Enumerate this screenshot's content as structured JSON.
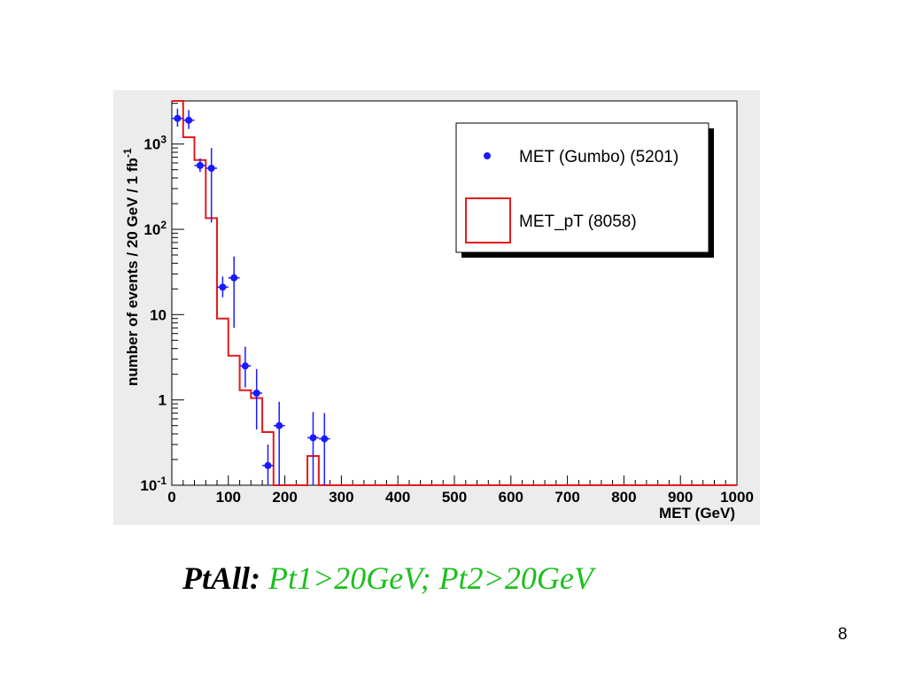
{
  "slide": {
    "caption_label": "PtAll:",
    "caption_cuts": "Pt1>20GeV; Pt2>20GeV",
    "page_number": "8"
  },
  "chart_data": {
    "type": "histogram",
    "title": "",
    "xlabel": "MET (GeV)",
    "ylabel": "number of events / 20 GeV / 1 fb",
    "ylabel_superscript": "-1",
    "xlim": [
      0,
      1000
    ],
    "ylim": [
      0.1,
      3200
    ],
    "yscale": "log",
    "grid": false,
    "legend_position": "top-right",
    "x_ticks": [
      "0",
      "100",
      "200",
      "300",
      "400",
      "500",
      "600",
      "700",
      "800",
      "900",
      "1000"
    ],
    "y_ticks": [
      {
        "value": 0.1,
        "base": "10",
        "exp": "-1"
      },
      {
        "value": 1,
        "base": "1",
        "exp": ""
      },
      {
        "value": 10,
        "base": "10",
        "exp": ""
      },
      {
        "value": 100,
        "base": "10",
        "exp": "2"
      },
      {
        "value": 1000,
        "base": "10",
        "exp": "3"
      }
    ],
    "series": [
      {
        "name": "MET (Gumbo) (5201)",
        "style": "points-with-errors",
        "color": "#1a1aff",
        "bin_width": 20,
        "points": [
          {
            "x": 10,
            "y": 2000,
            "lo": 1600,
            "hi": 2600
          },
          {
            "x": 30,
            "y": 1900,
            "lo": 1500,
            "hi": 2500
          },
          {
            "x": 50,
            "y": 560,
            "lo": 470,
            "hi": 680
          },
          {
            "x": 70,
            "y": 520,
            "lo": 120,
            "hi": 900
          },
          {
            "x": 90,
            "y": 21,
            "lo": 16,
            "hi": 28
          },
          {
            "x": 110,
            "y": 27,
            "lo": 7,
            "hi": 48
          },
          {
            "x": 130,
            "y": 2.5,
            "lo": 1.4,
            "hi": 4.2
          },
          {
            "x": 150,
            "y": 1.2,
            "lo": 0.45,
            "hi": 2.3
          },
          {
            "x": 170,
            "y": 0.17,
            "lo": 0.1,
            "hi": 0.3
          },
          {
            "x": 190,
            "y": 0.5,
            "lo": 0.1,
            "hi": 0.95
          },
          {
            "x": 250,
            "y": 0.36,
            "lo": 0.1,
            "hi": 0.72
          },
          {
            "x": 270,
            "y": 0.35,
            "lo": 0.1,
            "hi": 0.7
          }
        ]
      },
      {
        "name": "MET_pT (8058)",
        "style": "step",
        "color": "#e41a1c",
        "bin_width": 20,
        "bins": [
          {
            "x0": 0,
            "x1": 20,
            "y": 3200
          },
          {
            "x0": 20,
            "x1": 40,
            "y": 1200
          },
          {
            "x0": 40,
            "x1": 60,
            "y": 650
          },
          {
            "x0": 60,
            "x1": 80,
            "y": 135
          },
          {
            "x0": 80,
            "x1": 100,
            "y": 9
          },
          {
            "x0": 100,
            "x1": 120,
            "y": 3.3
          },
          {
            "x0": 120,
            "x1": 140,
            "y": 1.3
          },
          {
            "x0": 140,
            "x1": 160,
            "y": 1.05
          },
          {
            "x0": 160,
            "x1": 180,
            "y": 0.42
          },
          {
            "x0": 180,
            "x1": 240,
            "y": 0.1
          },
          {
            "x0": 240,
            "x1": 260,
            "y": 0.22
          },
          {
            "x0": 260,
            "x1": 1000,
            "y": 0.1
          }
        ]
      }
    ]
  },
  "colors": {
    "plot_background": "#ececec",
    "frame_background": "#ffffff",
    "caption_cuts": "#1dbf1d"
  }
}
